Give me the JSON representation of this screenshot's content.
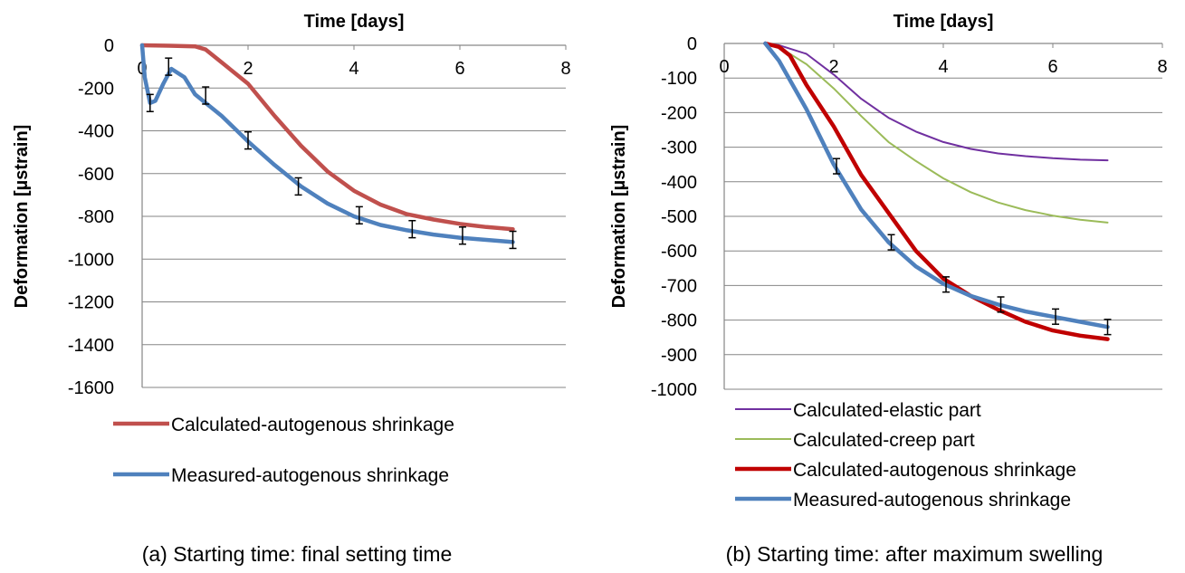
{
  "chart_data": [
    {
      "type": "line",
      "title": "",
      "xlabel": "Time [days]",
      "ylabel": "Deformation [µstrain]",
      "caption": "(a) Starting time: final setting time",
      "xlim": [
        0,
        8
      ],
      "ylim": [
        -1600,
        0
      ],
      "x_ticks": [
        0,
        2,
        4,
        6,
        8
      ],
      "y_ticks": [
        0,
        -200,
        -400,
        -600,
        -800,
        -1000,
        -1200,
        -1400,
        -1600
      ],
      "x_axis_position": "top",
      "grid": "horizontal",
      "legend_position": "bottom",
      "series": [
        {
          "name": "Calculated-autogenous shrinkage",
          "color": "#c0504d",
          "x": [
            0,
            0.5,
            1.0,
            1.2,
            1.5,
            2.0,
            2.5,
            3.0,
            3.5,
            4.0,
            4.5,
            5.0,
            5.5,
            6.0,
            6.5,
            7.0
          ],
          "y": [
            0,
            -2,
            -5,
            -20,
            -80,
            -180,
            -330,
            -470,
            -590,
            -680,
            -745,
            -790,
            -815,
            -835,
            -850,
            -860
          ]
        },
        {
          "name": "Measured-autogenous shrinkage",
          "color": "#4f81bd",
          "x": [
            0,
            0.05,
            0.15,
            0.25,
            0.4,
            0.55,
            0.8,
            1.0,
            1.5,
            2.0,
            2.5,
            3.0,
            3.5,
            4.0,
            4.5,
            5.0,
            5.5,
            6.0,
            6.5,
            7.0
          ],
          "y": [
            0,
            -150,
            -270,
            -260,
            -180,
            -110,
            -150,
            -230,
            -330,
            -450,
            -560,
            -660,
            -740,
            -800,
            -840,
            -865,
            -885,
            -900,
            -910,
            -920
          ],
          "error_bars": {
            "x": [
              0.15,
              0.5,
              1.2,
              2.0,
              2.95,
              4.1,
              5.1,
              6.05,
              7.0
            ],
            "y": [
              -270,
              -100,
              -235,
              -445,
              -660,
              -795,
              -860,
              -890,
              -910
            ],
            "err": [
              40,
              40,
              40,
              40,
              40,
              40,
              40,
              40,
              40
            ]
          }
        }
      ]
    },
    {
      "type": "line",
      "title": "",
      "xlabel": "Time [days]",
      "ylabel": "Deformation [µstrain]",
      "caption": "(b) Starting time: after maximum swelling",
      "xlim": [
        0,
        8
      ],
      "ylim": [
        -1000,
        0
      ],
      "x_ticks": [
        0,
        2,
        4,
        6,
        8
      ],
      "y_ticks": [
        0,
        -100,
        -200,
        -300,
        -400,
        -500,
        -600,
        -700,
        -800,
        -900,
        -1000
      ],
      "x_axis_position": "top",
      "grid": "horizontal",
      "legend_position": "bottom",
      "series": [
        {
          "name": "Calculated-elastic part",
          "color": "#7030a0",
          "x": [
            0.75,
            1.0,
            1.5,
            2.0,
            2.5,
            3.0,
            3.5,
            4.0,
            4.5,
            5.0,
            5.5,
            6.0,
            6.5,
            7.0
          ],
          "y": [
            0,
            -5,
            -30,
            -90,
            -160,
            -215,
            -255,
            -285,
            -305,
            -318,
            -326,
            -332,
            -336,
            -338
          ]
        },
        {
          "name": "Calculated-creep part",
          "color": "#9bbb59",
          "x": [
            0.75,
            1.0,
            1.5,
            2.0,
            2.5,
            3.0,
            3.5,
            4.0,
            4.5,
            5.0,
            5.5,
            6.0,
            6.5,
            7.0
          ],
          "y": [
            0,
            -10,
            -60,
            -130,
            -210,
            -285,
            -340,
            -390,
            -430,
            -460,
            -482,
            -498,
            -510,
            -518
          ]
        },
        {
          "name": "Calculated-autogenous shrinkage",
          "color": "#c00000",
          "x": [
            0.75,
            1.0,
            1.2,
            1.5,
            2.0,
            2.5,
            3.0,
            3.5,
            4.0,
            4.5,
            5.0,
            5.5,
            6.0,
            6.5,
            7.0
          ],
          "y": [
            0,
            -10,
            -35,
            -120,
            -240,
            -380,
            -490,
            -600,
            -680,
            -730,
            -770,
            -805,
            -830,
            -845,
            -855
          ]
        },
        {
          "name": "Measured-autogenous shrinkage",
          "color": "#4f81bd",
          "x": [
            0.75,
            1.0,
            1.5,
            2.0,
            2.5,
            3.0,
            3.5,
            4.0,
            4.5,
            5.0,
            5.5,
            6.0,
            6.5,
            7.0
          ],
          "y": [
            0,
            -50,
            -190,
            -350,
            -480,
            -575,
            -645,
            -695,
            -730,
            -755,
            -775,
            -790,
            -805,
            -820
          ],
          "error_bars": {
            "x": [
              2.05,
              3.05,
              4.05,
              5.05,
              6.05,
              7.0
            ],
            "y": [
              -355,
              -575,
              -697,
              -755,
              -790,
              -820
            ],
            "err": [
              22,
              22,
              22,
              22,
              22,
              22
            ]
          }
        }
      ]
    }
  ]
}
